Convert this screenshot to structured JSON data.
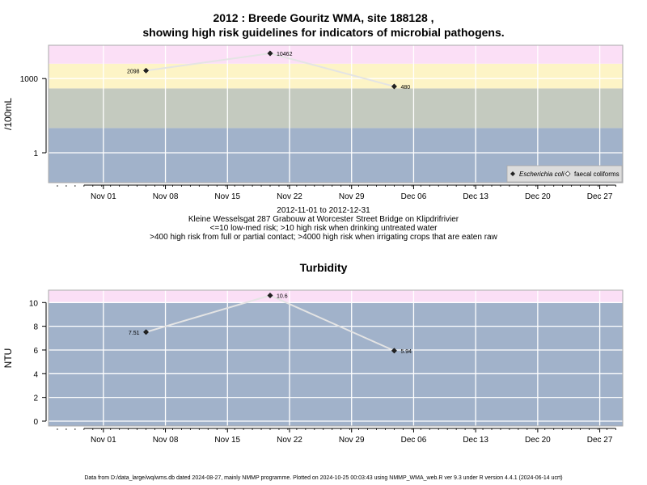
{
  "header": {
    "title_line1": "2012 : Breede Gouritz WMA, site 188128 ,",
    "title_line2": "showing high risk guidelines for indicators of microbial pathogens."
  },
  "info": {
    "date_range": "2012-11-01 to 2012-12-31",
    "site": "Kleine Wesselsgat 287 Grabouw at Worcester Street Bridge on Klipdrifrivier",
    "guideline1": "<=10 low-med risk; >10 high risk when drinking untreated water",
    "guideline2": ">400 high risk from full or partial contact; >4000 high risk when irrigating crops that are eaten raw"
  },
  "footer": "Data from D:/data_large/wq/wms.db dated 2024-08-27, mainly NMMP programme. Plotted on 2024-10-25 00:03:43 using NMMP_WMA_web.R ver 9.3 under R version 4.4.1 (2024-06-14 ucrt)",
  "chart_data": [
    {
      "type": "line",
      "title": "2012 : Breede Gouritz WMA, site 188128 , showing high risk guidelines for indicators of microbial pathogens.",
      "xlabel": "",
      "ylabel": "/100mL",
      "y_scale": "log",
      "x_ticks": [
        "Nov 01",
        "Nov 08",
        "Nov 15",
        "Nov 22",
        "Nov 29",
        "Dec 06",
        "Dec 13",
        "Dec 20",
        "Dec 27"
      ],
      "y_ticks": [
        "1",
        "1000"
      ],
      "grid": true,
      "legend_position": "bottom-right",
      "bands": [
        {
          "from": 0.002,
          "to": 10,
          "color": "#a1b2ca"
        },
        {
          "from": 10,
          "to": 400,
          "color": "#c4cabf"
        },
        {
          "from": 400,
          "to": 4000,
          "color": "#fdf4c6"
        },
        {
          "from": 4000,
          "to": 100000,
          "color": "#fbdff6"
        }
      ],
      "series": [
        {
          "name": "Escherichia coli",
          "marker": "filled-diamond",
          "x": [
            "2012-11-08",
            "2012-11-22",
            "2012-12-06"
          ],
          "y": [
            2098,
            10462,
            480
          ],
          "labels": [
            "2098",
            "10462",
            "480"
          ]
        },
        {
          "name": "faecal coliforms",
          "marker": "open-diamond",
          "x": [],
          "y": []
        }
      ]
    },
    {
      "type": "line",
      "title": "Turbidity",
      "xlabel": "",
      "ylabel": "NTU",
      "x_ticks": [
        "Nov 01",
        "Nov 08",
        "Nov 15",
        "Nov 22",
        "Nov 29",
        "Dec 06",
        "Dec 13",
        "Dec 20",
        "Dec 27"
      ],
      "y_ticks": [
        "0",
        "2",
        "4",
        "6",
        "8",
        "10"
      ],
      "ylim": [
        -0.4,
        11
      ],
      "grid": true,
      "bands": [
        {
          "from": -0.4,
          "to": 10,
          "color": "#a1b2ca"
        },
        {
          "from": 10,
          "to": 11,
          "color": "#fbdff6"
        }
      ],
      "series": [
        {
          "x": [
            "2012-11-08",
            "2012-11-22",
            "2012-12-06"
          ],
          "y": [
            7.51,
            10.6,
            5.94
          ],
          "labels": [
            "7.51",
            "10.6",
            "5.94"
          ]
        }
      ]
    }
  ]
}
